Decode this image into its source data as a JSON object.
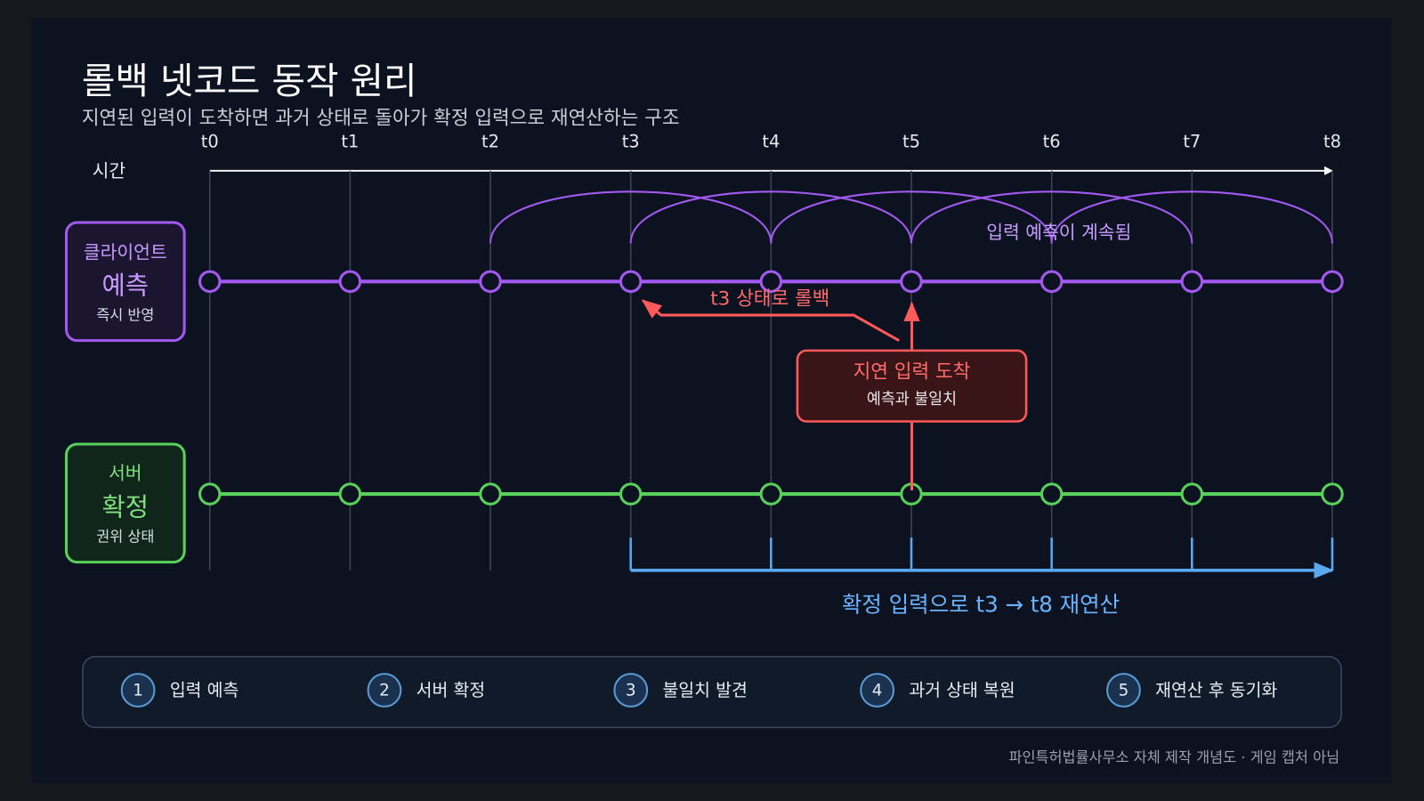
{
  "header": {
    "title": "롤백 넷코드 동작 원리",
    "subtitle": "지연된 입력이 도착하면 과거 상태로 돌아가 확정 입력으로 재연산하는 구조"
  },
  "timeline": {
    "axis_label": "시간",
    "ticks": [
      "t0",
      "t1",
      "t2",
      "t3",
      "t4",
      "t5",
      "t6",
      "t7",
      "t8"
    ]
  },
  "lanes": {
    "client": {
      "line1": "클라이언트",
      "line2": "예측",
      "line3": "즉시 반영"
    },
    "server": {
      "line1": "서버",
      "line2": "확정",
      "line3": "권위 상태"
    }
  },
  "annotations": {
    "prediction": "입력 예측이 계속됨",
    "rollback": "t3 상태로 롤백",
    "callout_title": "지연 입력 도착",
    "callout_sub": "예측과 불일치",
    "resimulation": "확정 입력으로 t3 → t8 재연산"
  },
  "steps": [
    {
      "num": "1",
      "label": "입력 예측"
    },
    {
      "num": "2",
      "label": "서버 확정"
    },
    {
      "num": "3",
      "label": "불일치 발견"
    },
    {
      "num": "4",
      "label": "과거 상태 복원"
    },
    {
      "num": "5",
      "label": "재연산 후 동기화"
    }
  ],
  "footer": "파인특허법률사무소 자체 제작 개념도 · 게임 캡처 아님"
}
